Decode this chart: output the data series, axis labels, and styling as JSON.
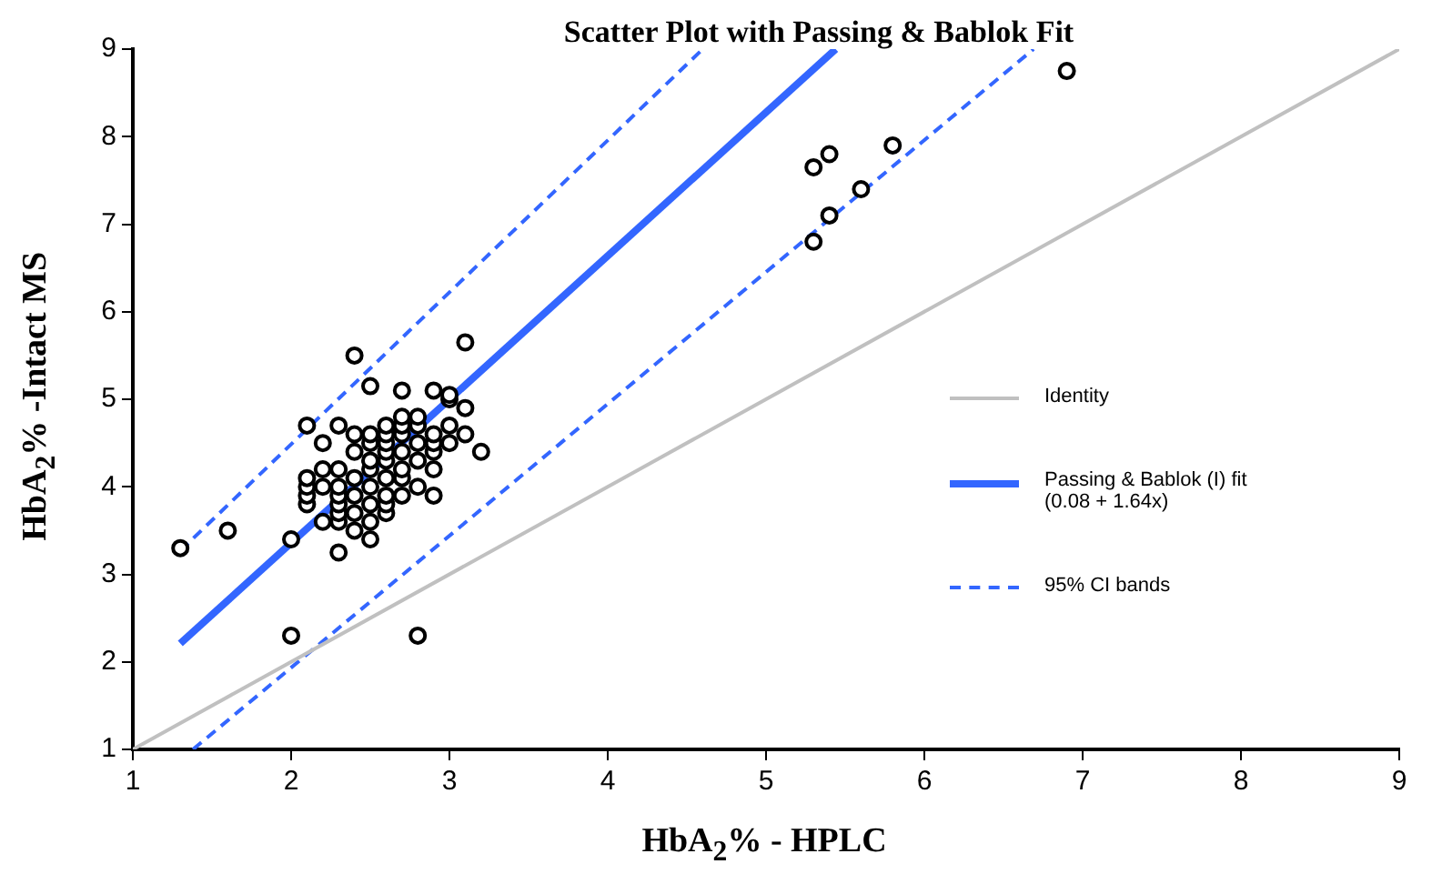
{
  "chart_data": {
    "type": "scatter",
    "title": "Scatter Plot with Passing & Bablok Fit",
    "xlabel": "HbA$_{2}$% - HPLC",
    "ylabel": "HbA$_{2}$% -Intact MS",
    "xlim": [
      1,
      9
    ],
    "ylim": [
      1,
      9
    ],
    "xticks": [
      1,
      2,
      3,
      4,
      5,
      6,
      7,
      8,
      9
    ],
    "yticks": [
      1,
      2,
      3,
      4,
      5,
      6,
      7,
      8,
      9
    ],
    "legend": "right",
    "series": [
      {
        "marker": "circle",
        "color": "#000000",
        "x": [
          1.3,
          1.6,
          2.0,
          2.0,
          2.8,
          2.1,
          2.4,
          2.5,
          3.1,
          3.2,
          2.9,
          2.5,
          2.3,
          5.3,
          5.4,
          5.8,
          5.6,
          5.4,
          5.3,
          6.9,
          2.1,
          2.1,
          2.1,
          2.1,
          2.2,
          2.2,
          2.2,
          2.2,
          2.3,
          2.3,
          2.3,
          2.3,
          2.3,
          2.3,
          2.3,
          2.4,
          2.4,
          2.4,
          2.4,
          2.4,
          2.4,
          2.5,
          2.5,
          2.5,
          2.5,
          2.5,
          2.5,
          2.5,
          2.6,
          2.6,
          2.6,
          2.6,
          2.6,
          2.6,
          2.6,
          2.6,
          2.6,
          2.7,
          2.7,
          2.7,
          2.7,
          2.7,
          2.7,
          2.7,
          2.7,
          2.8,
          2.8,
          2.8,
          2.8,
          2.8,
          2.9,
          2.9,
          2.9,
          2.9,
          2.9,
          3.0,
          3.0,
          3.0,
          3.0,
          3.1,
          3.1
        ],
        "values": [
          3.3,
          3.5,
          3.4,
          2.3,
          2.3,
          4.7,
          5.5,
          5.15,
          5.65,
          4.4,
          3.9,
          3.4,
          3.25,
          7.65,
          7.8,
          7.9,
          7.4,
          7.1,
          6.8,
          8.75,
          3.8,
          3.9,
          4.0,
          4.1,
          3.6,
          4.0,
          4.2,
          4.5,
          3.6,
          3.7,
          3.8,
          3.9,
          4.0,
          4.2,
          4.7,
          3.5,
          3.7,
          3.9,
          4.1,
          4.4,
          4.6,
          3.6,
          3.8,
          4.0,
          4.2,
          4.3,
          4.5,
          4.6,
          3.7,
          3.8,
          3.9,
          4.1,
          4.3,
          4.4,
          4.5,
          4.6,
          4.7,
          3.9,
          4.1,
          4.2,
          4.4,
          4.6,
          4.7,
          4.8,
          5.1,
          4.0,
          4.3,
          4.5,
          4.7,
          4.8,
          4.2,
          4.4,
          4.5,
          4.6,
          5.1,
          4.5,
          4.7,
          5.0,
          5.05,
          4.6,
          4.9
        ]
      },
      {
        "type": "line",
        "name": "Identity",
        "color": "#c0c0c0",
        "line_style": "solid",
        "marker": "none",
        "x": [
          1,
          9
        ],
        "values": [
          1,
          9
        ]
      },
      {
        "type": "line",
        "name": "Passing & Bablok (I) fit (0.08 + 1.64x)",
        "color": "#3366ff",
        "line_style": "solid",
        "marker": "none",
        "x": [
          1.3,
          5.44
        ],
        "values": [
          2.21,
          9
        ]
      },
      {
        "type": "line",
        "name": "95% CI bands",
        "color": "#3366ff",
        "line_style": "dashed",
        "marker": "none",
        "x": [
          1.3,
          4.6
        ],
        "values": [
          3.27,
          9
        ]
      },
      {
        "type": "line",
        "color": "#3366ff",
        "line_style": "dashed",
        "marker": "none",
        "x": [
          1.38,
          6.69
        ],
        "values": [
          1,
          9
        ]
      }
    ]
  }
}
